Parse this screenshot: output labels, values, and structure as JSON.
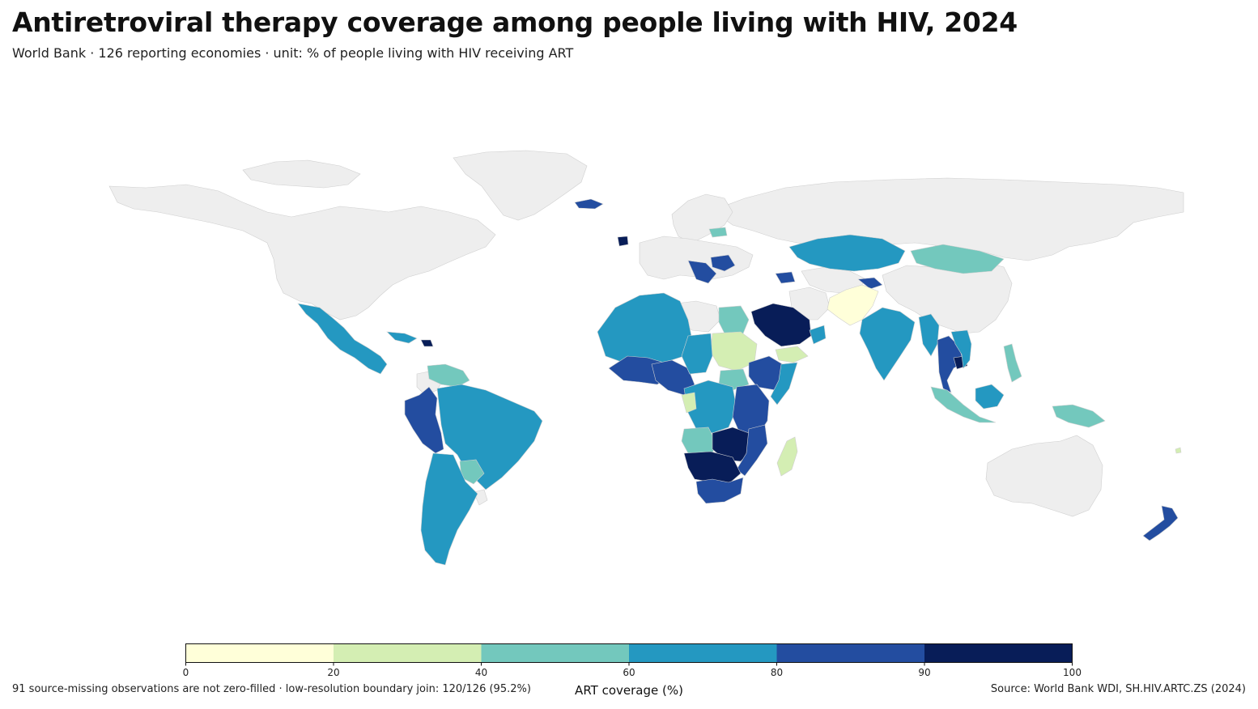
{
  "header": {
    "title": "Antiretroviral therapy coverage among people living with HIV, 2024",
    "subtitle": "World Bank · 126 reporting economies · unit: % of people living with HIV receiving ART"
  },
  "colorbar": {
    "label": "ART coverage (%)",
    "ticks": [
      "0",
      "20",
      "40",
      "60",
      "80",
      "90",
      "100"
    ],
    "bins": [
      {
        "from": 0,
        "to": 20,
        "color": "#ffffd9"
      },
      {
        "from": 20,
        "to": 40,
        "color": "#d4eeb3"
      },
      {
        "from": 40,
        "to": 60,
        "color": "#73c8bd"
      },
      {
        "from": 60,
        "to": 80,
        "color": "#2498c1"
      },
      {
        "from": 80,
        "to": 90,
        "color": "#234da0"
      },
      {
        "from": 90,
        "to": 100,
        "color": "#081d58"
      }
    ]
  },
  "footer": {
    "note": "91 source-missing observations are not zero-filled · low-resolution boundary join: 120/126 (95.2%)",
    "source": "Source: World Bank WDI, SH.HIV.ARTC.ZS (2024)"
  },
  "map": {
    "no_data_color": "#eeeeee",
    "border_color": "#cccccc"
  }
}
